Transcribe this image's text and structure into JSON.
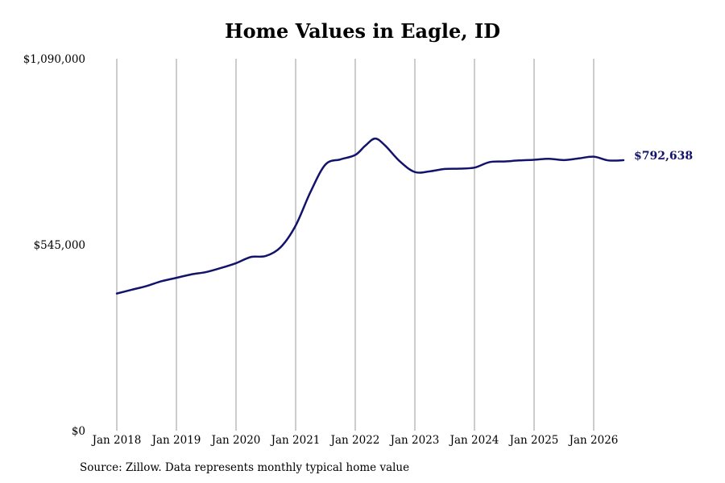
{
  "chart_data": {
    "type": "line",
    "title": "Home Values in Eagle, ID",
    "source_note": "Source: Zillow. Data represents monthly typical home value",
    "ylim": [
      0,
      1090000
    ],
    "y_ticks": [
      {
        "value": 0,
        "label": "$0"
      },
      {
        "value": 545000,
        "label": "$545,000"
      },
      {
        "value": 1090000,
        "label": "$1,090,000"
      }
    ],
    "x_ticks": [
      {
        "value": "2018-01",
        "label": "Jan 2018"
      },
      {
        "value": "2019-01",
        "label": "Jan 2019"
      },
      {
        "value": "2020-01",
        "label": "Jan 2020"
      },
      {
        "value": "2021-01",
        "label": "Jan 2021"
      },
      {
        "value": "2022-01",
        "label": "Jan 2022"
      },
      {
        "value": "2023-01",
        "label": "Jan 2023"
      },
      {
        "value": "2024-01",
        "label": "Jan 2024"
      },
      {
        "value": "2025-01",
        "label": "Jan 2025"
      },
      {
        "value": "2026-01",
        "label": "Jan 2026"
      }
    ],
    "grid": {
      "vertical": true,
      "horizontal": false
    },
    "line_color": "#14136b",
    "grid_color": "#9a9a9a",
    "end_label": "$792,638",
    "series": [
      {
        "x": [
          "2018-01",
          "2018-04",
          "2018-07",
          "2018-10",
          "2019-01",
          "2019-04",
          "2019-07",
          "2019-10",
          "2020-01",
          "2020-04",
          "2020-07",
          "2020-10",
          "2021-01",
          "2021-04",
          "2021-07",
          "2021-10",
          "2022-01",
          "2022-03",
          "2022-05",
          "2022-07",
          "2022-10",
          "2023-01",
          "2023-04",
          "2023-07",
          "2023-10",
          "2024-01",
          "2024-04",
          "2024-07",
          "2024-10",
          "2025-01",
          "2025-04",
          "2025-07",
          "2025-10",
          "2026-01",
          "2026-04",
          "2026-07"
        ],
        "values": [
          402000,
          413000,
          424000,
          438000,
          448000,
          458000,
          465000,
          477000,
          491000,
          509000,
          512000,
          538000,
          601000,
          700000,
          780000,
          795000,
          808000,
          835000,
          856000,
          836000,
          789000,
          758000,
          760000,
          767000,
          768000,
          771000,
          787000,
          789000,
          792000,
          794000,
          797000,
          793000,
          798000,
          803000,
          792000,
          792638
        ]
      }
    ]
  }
}
